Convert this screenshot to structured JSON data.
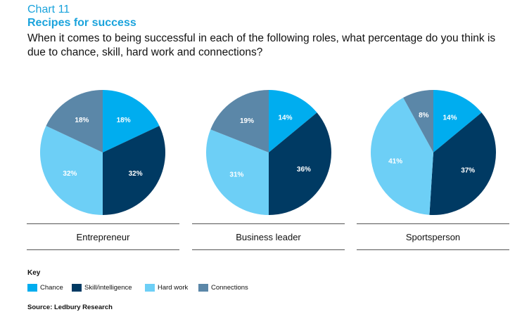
{
  "header": {
    "chart_number": "Chart 11",
    "title": "Recipes for success",
    "subtitle": "When it comes to being successful in each of the following roles, what percentage do you think is due to chance, skill, hard work and connections?"
  },
  "colors": {
    "chance": "#00adef",
    "skill": "#003a63",
    "hard_work": "#6dcff6",
    "connections": "#5b87a8"
  },
  "chart_data": [
    {
      "type": "pie",
      "title": "Entrepreneur",
      "labels": [
        "Chance",
        "Skill/intelligence",
        "Hard work",
        "Connections"
      ],
      "values": [
        18,
        32,
        32,
        18
      ]
    },
    {
      "type": "pie",
      "title": "Business leader",
      "labels": [
        "Chance",
        "Skill/intelligence",
        "Hard work",
        "Connections"
      ],
      "values": [
        14,
        36,
        31,
        19
      ]
    },
    {
      "type": "pie",
      "title": "Sportsperson",
      "labels": [
        "Chance",
        "Skill/intelligence",
        "Hard work",
        "Connections"
      ],
      "values": [
        14,
        37,
        41,
        8
      ]
    }
  ],
  "key": {
    "title": "Key",
    "items": [
      "Chance",
      "Skill/intelligence",
      "Hard work",
      "Connections"
    ]
  },
  "source": "Source: Ledbury Research"
}
